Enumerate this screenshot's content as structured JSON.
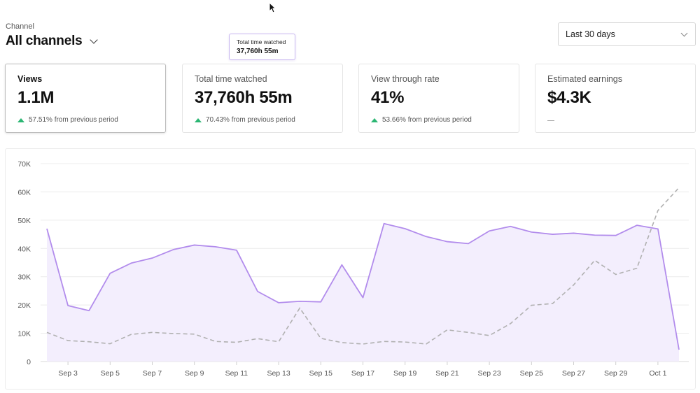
{
  "header": {
    "channel_label": "Channel",
    "channel_title": "All channels",
    "range": "Last 30 days"
  },
  "tooltip": {
    "title": "Total time watched",
    "value": "37,760h 55m"
  },
  "cards": [
    {
      "label": "Views",
      "value": "1.1M",
      "delta": "57.51% from previous period",
      "trend": "up"
    },
    {
      "label": "Total time watched",
      "value": "37,760h 55m",
      "delta": "70.43% from previous period",
      "trend": "up"
    },
    {
      "label": "View through rate",
      "value": "41%",
      "delta": "53.66% from previous period",
      "trend": "up"
    },
    {
      "label": "Estimated earnings",
      "value": "$4.3K",
      "delta": "",
      "trend": "none"
    }
  ],
  "colors": {
    "primary": "#b28cec",
    "fill": "#f3eefd",
    "previous": "#b0b0b0",
    "up": "#2bb673"
  },
  "chart_data": {
    "type": "area",
    "ylim": [
      0,
      70000
    ],
    "y_ticks": [
      0,
      10000,
      20000,
      30000,
      40000,
      50000,
      60000,
      70000
    ],
    "y_tick_labels": [
      "0",
      "10K",
      "20K",
      "30K",
      "40K",
      "50K",
      "60K",
      "70K"
    ],
    "x": [
      "Sep 2",
      "Sep 3",
      "Sep 4",
      "Sep 5",
      "Sep 6",
      "Sep 7",
      "Sep 8",
      "Sep 9",
      "Sep 10",
      "Sep 11",
      "Sep 12",
      "Sep 13",
      "Sep 14",
      "Sep 15",
      "Sep 16",
      "Sep 17",
      "Sep 18",
      "Sep 19",
      "Sep 20",
      "Sep 21",
      "Sep 22",
      "Sep 23",
      "Sep 24",
      "Sep 25",
      "Sep 26",
      "Sep 27",
      "Sep 28",
      "Sep 29",
      "Sep 30",
      "Oct 1",
      "Oct 2"
    ],
    "x_tick_labels": [
      "Sep 3",
      "Sep 5",
      "Sep 7",
      "Sep 9",
      "Sep 11",
      "Sep 13",
      "Sep 15",
      "Sep 17",
      "Sep 19",
      "Sep 21",
      "Sep 23",
      "Sep 25",
      "Sep 27",
      "Sep 29",
      "Oct 1"
    ],
    "series": [
      {
        "style": "solid-area",
        "values": [
          47000,
          19800,
          18000,
          31200,
          34800,
          36600,
          39600,
          41200,
          40600,
          39400,
          24800,
          20800,
          21300,
          21100,
          34200,
          22600,
          48800,
          47000,
          44200,
          42400,
          41700,
          46200,
          47800,
          45800,
          45000,
          45400,
          44700,
          44600,
          48200,
          46900,
          4200
        ]
      },
      {
        "style": "dashed",
        "values": [
          10300,
          7400,
          7000,
          6300,
          9600,
          10300,
          9900,
          9700,
          7100,
          6800,
          8100,
          7000,
          18900,
          8200,
          6700,
          6200,
          7100,
          6900,
          6200,
          11200,
          10300,
          9200,
          13400,
          19900,
          20500,
          27100,
          35800,
          30800,
          33000,
          53400,
          61500
        ]
      }
    ]
  }
}
